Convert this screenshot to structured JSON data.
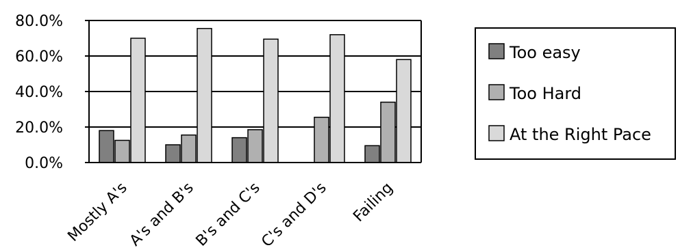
{
  "chart_data": {
    "type": "bar",
    "categories": [
      "Mostly A's",
      "A's and B's",
      "B's and C's",
      "C's and D's",
      "Failing"
    ],
    "series": [
      {
        "name": "Too easy",
        "values": [
          18.0,
          10.0,
          14.0,
          0.0,
          9.5
        ],
        "color": "#808080"
      },
      {
        "name": "Too Hard",
        "values": [
          12.5,
          15.5,
          18.5,
          25.5,
          34.0
        ],
        "color": "#b0b0b0"
      },
      {
        "name": "At the Right Pace",
        "values": [
          70.0,
          75.5,
          69.5,
          72.0,
          58.0
        ],
        "color": "#d9d9d9"
      }
    ],
    "yticks": [
      "0.0%",
      "20.0%",
      "40.0%",
      "60.0%",
      "80.0%"
    ],
    "ylim": [
      0,
      80
    ],
    "ystep": 20,
    "grid": true,
    "legend_position": "right"
  }
}
